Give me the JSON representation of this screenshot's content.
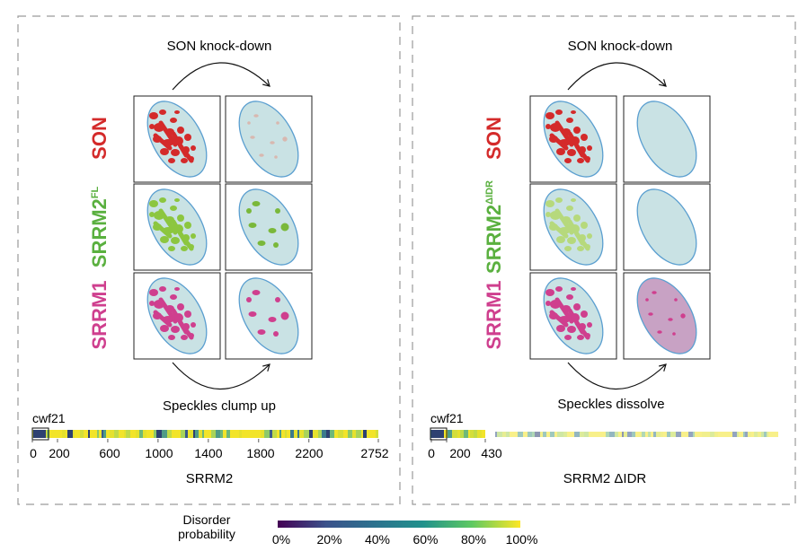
{
  "colors": {
    "son": "#d42a2a",
    "srrm2": "#5ab03f",
    "srrm1": "#cf3f8e",
    "nucleus_fill": "#c9e2e4",
    "nucleus_stroke": "#5b9fd0",
    "panel_border": "#999999"
  },
  "left_panel": {
    "top_label": "SON knock-down",
    "bottom_label": "Speckles clump up",
    "rows": [
      {
        "name": "SON",
        "sup": ""
      },
      {
        "name": "SRRM2",
        "sup": "FL"
      },
      {
        "name": "SRRM1",
        "sup": ""
      }
    ],
    "track_label": "cwf21",
    "ticks": [
      "0",
      "200",
      "600",
      "1000",
      "1400",
      "1800",
      "2200",
      "2752"
    ],
    "protein": "SRRM2"
  },
  "right_panel": {
    "top_label": "SON knock-down",
    "bottom_label": "Speckles dissolve",
    "rows": [
      {
        "name": "SON",
        "sup": ""
      },
      {
        "name": "SRRM2",
        "sup": "ΔIDR"
      },
      {
        "name": "SRRM1",
        "sup": ""
      }
    ],
    "track_label": "cwf21",
    "ticks": [
      "0",
      "200",
      "430"
    ],
    "protein": "SRRM2 ΔIDR"
  },
  "legend": {
    "title_line1": "Disorder",
    "title_line2": "probability",
    "ticks": [
      "0%",
      "20%",
      "40%",
      "60%",
      "80%",
      "100%"
    ]
  }
}
